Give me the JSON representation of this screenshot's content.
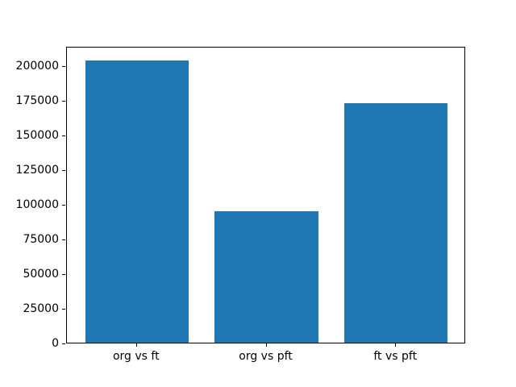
{
  "chart_data": {
    "type": "bar",
    "categories": [
      "org vs ft",
      "org vs pft",
      "ft vs pft"
    ],
    "values": [
      204000,
      95000,
      173000
    ],
    "title": "",
    "xlabel": "",
    "ylabel": "",
    "ylim": [
      0,
      214200
    ],
    "yticks": [
      0,
      25000,
      50000,
      75000,
      100000,
      125000,
      150000,
      175000,
      200000
    ],
    "bar_color": "#1f77b4",
    "axis_color": "#000000",
    "background_color": "#ffffff",
    "grid": false,
    "legend": null,
    "bar_relative_width": 0.8
  }
}
